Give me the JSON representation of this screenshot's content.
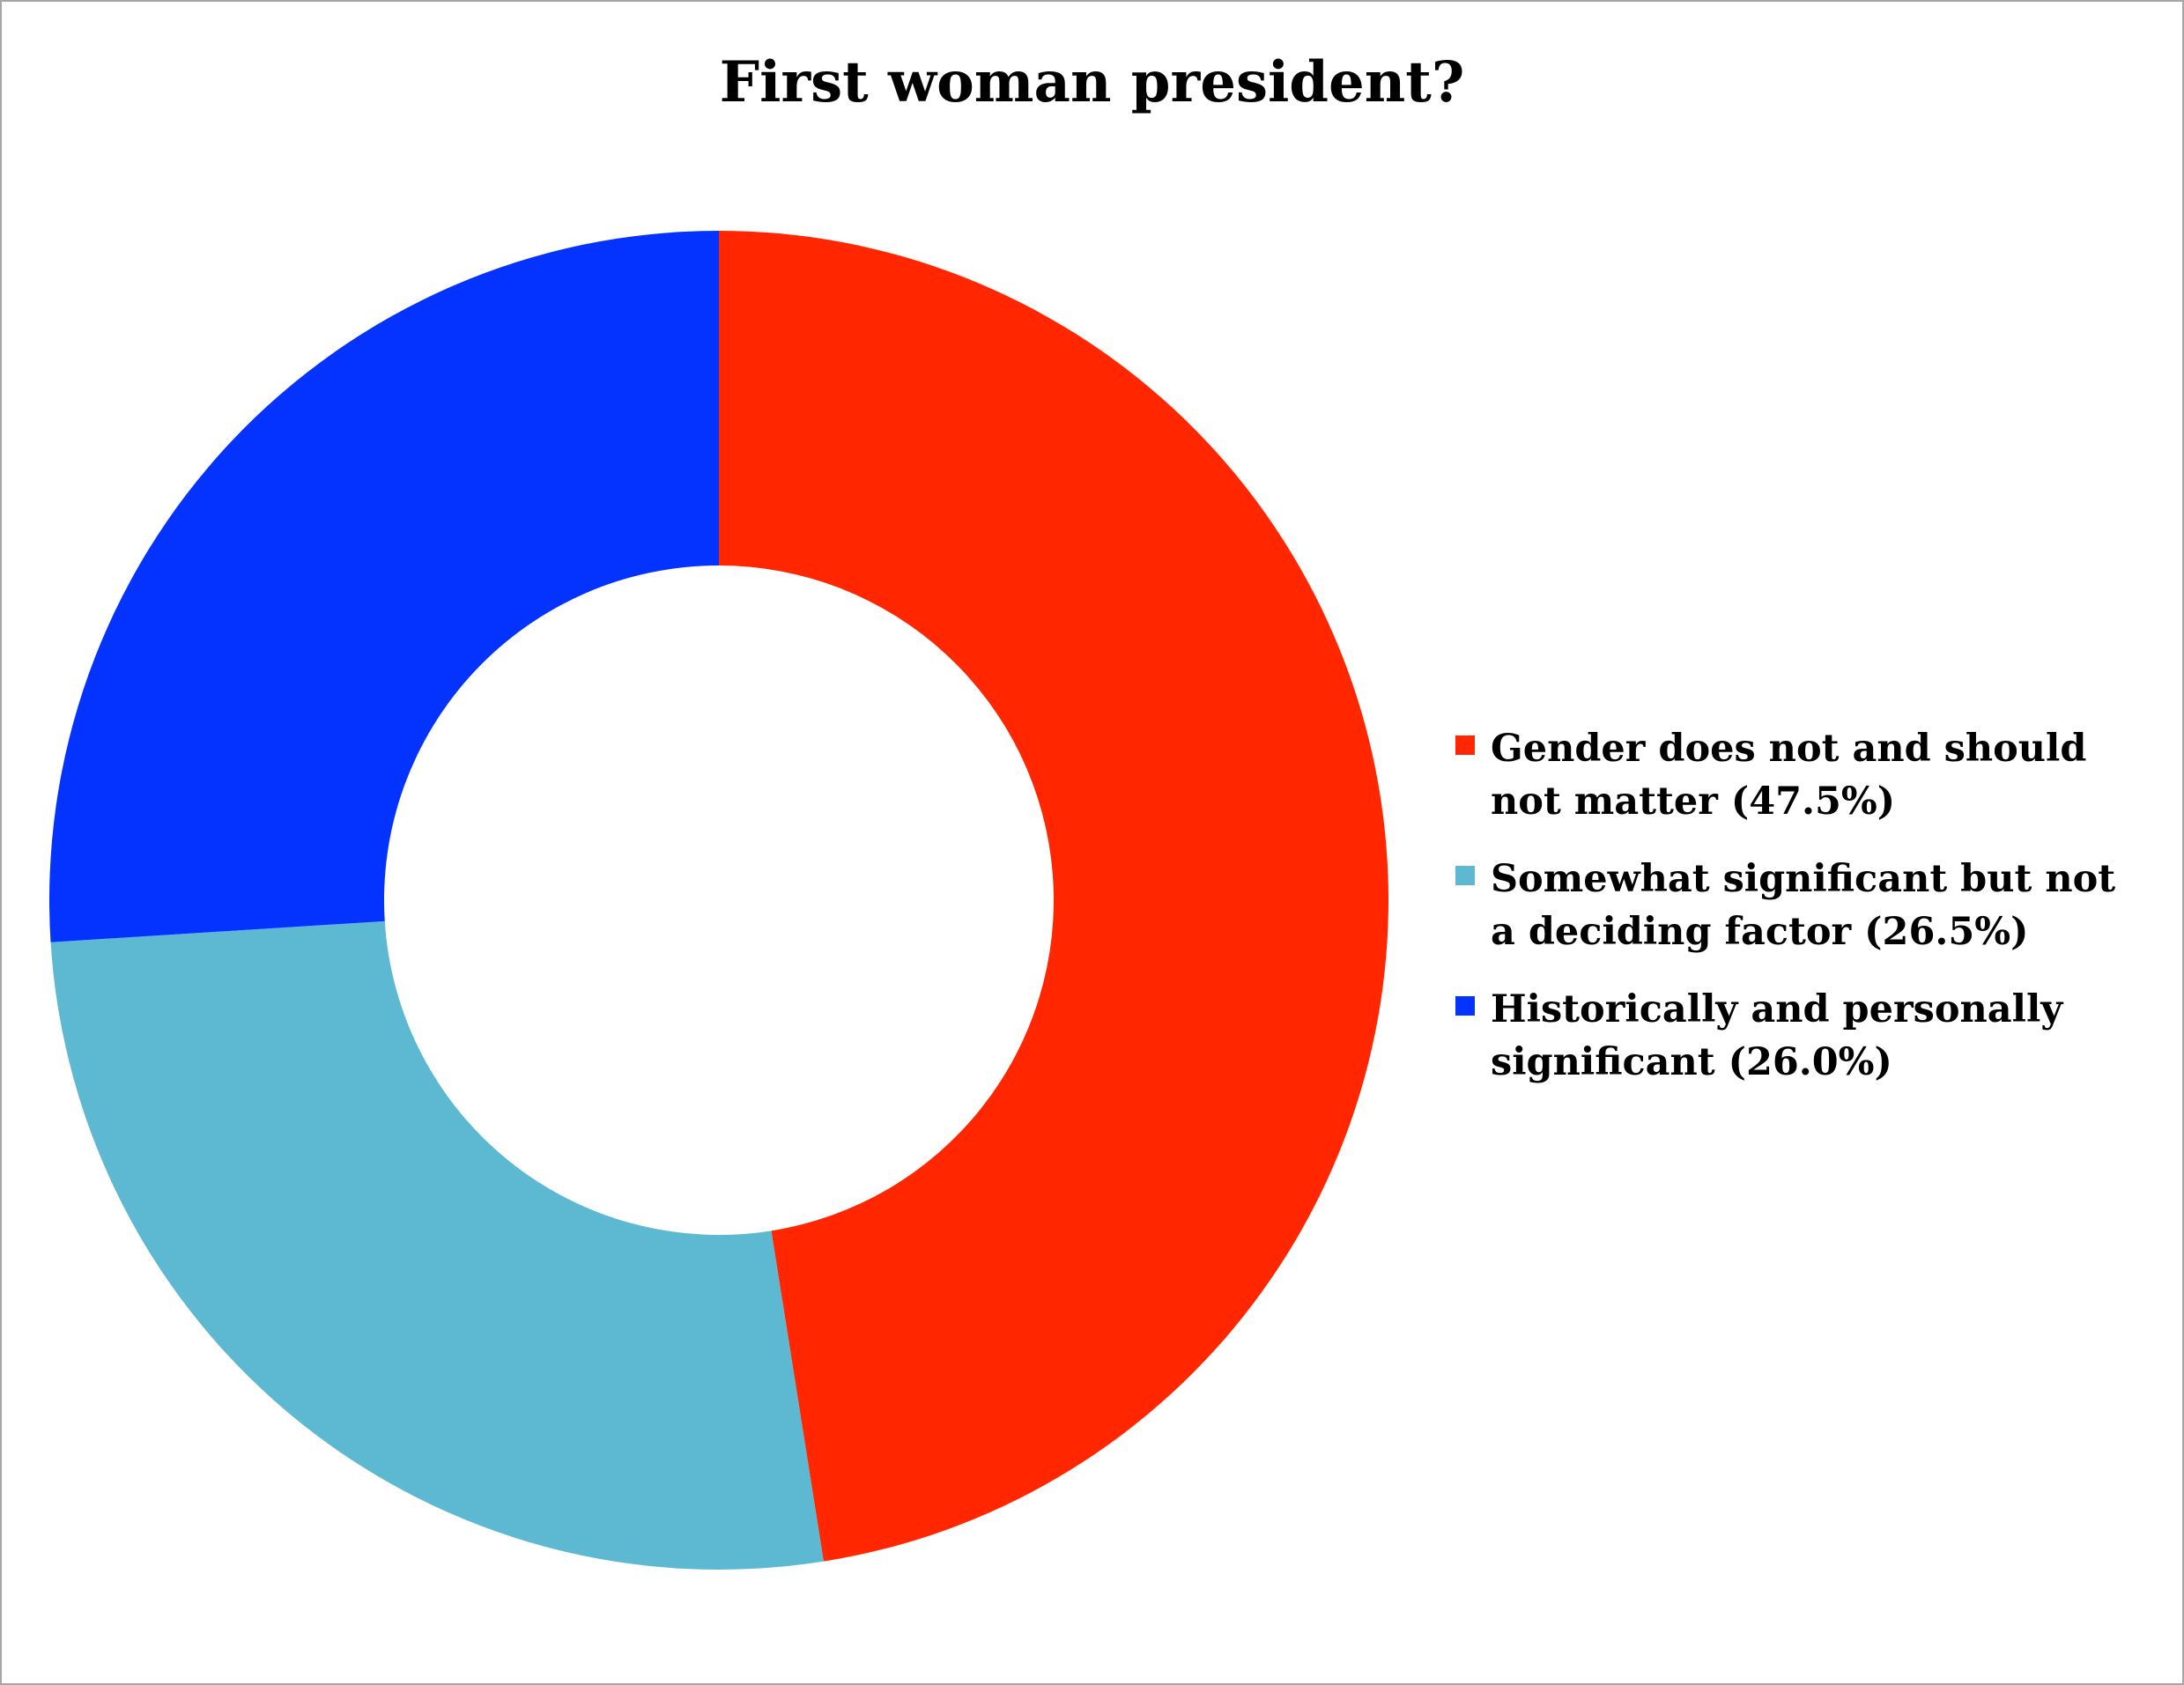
{
  "chart_data": {
    "type": "pie",
    "variant": "donut",
    "title": "First woman president?",
    "start_angle": "12 o'clock",
    "direction": "clockwise",
    "legend_position": "right",
    "slices": [
      {
        "label": "Gender does not and should not matter (47.5%)",
        "value": 47.5,
        "color": "#ff2600"
      },
      {
        "label": "Somewhat significant but not a deciding factor (26.5%)",
        "value": 26.5,
        "color": "#5db9d1"
      },
      {
        "label": "Historically and personally significant (26.0%)",
        "value": 26.0,
        "color": "#0433ff"
      }
    ]
  }
}
